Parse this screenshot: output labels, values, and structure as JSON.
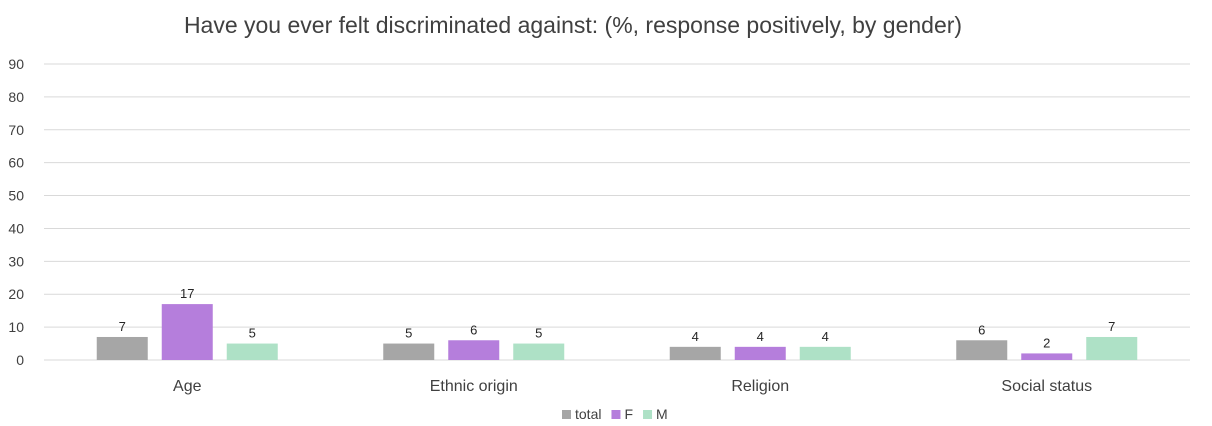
{
  "chart_data": {
    "type": "bar",
    "title": "Have you ever felt discriminated against:  (%, response positively,  by gender)",
    "categories": [
      "Age",
      "Ethnic origin",
      "Religion",
      "Social status"
    ],
    "series": [
      {
        "name": "total",
        "values": [
          7,
          5,
          4,
          6
        ],
        "labels": [
          "7",
          "5",
          "4",
          "6"
        ],
        "color": "#a6a6a6"
      },
      {
        "name": "F",
        "values": [
          17,
          6,
          4,
          2
        ],
        "labels": [
          "17",
          "6",
          "4",
          "2"
        ],
        "color": "#b57edc"
      },
      {
        "name": "M",
        "values": [
          5,
          5,
          4,
          7
        ],
        "labels": [
          "5",
          "5",
          "4",
          "7"
        ],
        "color": "#aee1c6"
      }
    ],
    "ylim": [
      0,
      90
    ],
    "yticks": [
      "0",
      "10",
      "20",
      "30",
      "40",
      "50",
      "60",
      "70",
      "80",
      "90"
    ],
    "grid": true,
    "gridline_color": "#d9d9d9",
    "legend_position": "bottom"
  }
}
